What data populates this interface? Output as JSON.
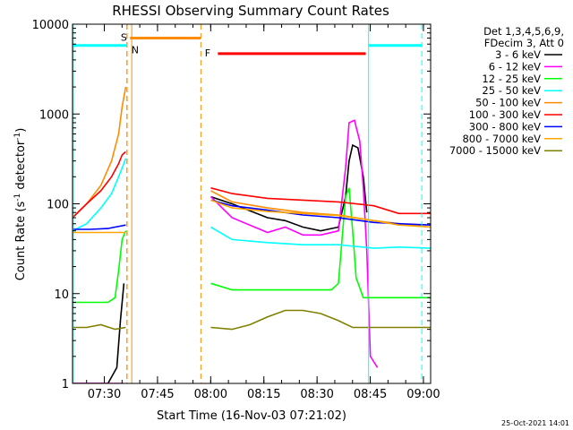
{
  "chart_data": {
    "type": "line",
    "title": "RHESSI Observing Summary Count Rates",
    "xlabel": "Start Time (16-Nov-03 07:21:02)",
    "ylabel_main": "Count Rate (s",
    "ylabel_sup1": "-1",
    "ylabel_mid": " detector",
    "ylabel_sup2": "-1",
    "ylabel_end": ")",
    "yscale": "log",
    "ylim": [
      1,
      10000
    ],
    "xlim_minutes": [
      0,
      101
    ],
    "x_ticks": [
      {
        "label": "07:30",
        "t": 8.97
      },
      {
        "label": "07:45",
        "t": 23.97
      },
      {
        "label": "08:00",
        "t": 38.97
      },
      {
        "label": "08:15",
        "t": 53.97
      },
      {
        "label": "08:30",
        "t": 68.97
      },
      {
        "label": "08:45",
        "t": 83.97
      },
      {
        "label": "09:00",
        "t": 98.97
      }
    ],
    "y_ticks": [
      {
        "label": "1",
        "v": 1
      },
      {
        "label": "10",
        "v": 10
      },
      {
        "label": "100",
        "v": 100
      },
      {
        "label": "1000",
        "v": 1000
      },
      {
        "label": "10000",
        "v": 10000
      }
    ],
    "legend_header": [
      "Det 1,3,4,5,6,9,",
      "FDecim 3, Att 0"
    ],
    "legend_placement": "top-right outside",
    "series": [
      {
        "name": "3 - 6 keV",
        "color": "#000000",
        "points": [
          [
            0,
            1.0
          ],
          [
            10,
            1.0
          ],
          [
            12.5,
            1.5
          ],
          [
            13.5,
            5
          ],
          [
            14.5,
            13
          ],
          [
            38.5,
            null
          ],
          [
            39,
            120
          ],
          [
            45,
            100
          ],
          [
            55,
            70
          ],
          [
            60,
            65
          ],
          [
            65,
            55
          ],
          [
            70,
            50
          ],
          [
            75,
            55
          ],
          [
            77,
            120
          ],
          [
            78,
            300
          ],
          [
            79,
            450
          ],
          [
            80.5,
            420
          ],
          [
            82,
            200
          ],
          [
            83,
            80
          ]
        ]
      },
      {
        "name": "6 - 12 keV",
        "color": "#ff00ff",
        "points": [
          [
            0,
            1.0
          ],
          [
            14.5,
            1.0
          ],
          [
            38.5,
            null
          ],
          [
            39,
            120
          ],
          [
            45,
            70
          ],
          [
            55,
            48
          ],
          [
            60,
            55
          ],
          [
            65,
            45
          ],
          [
            70,
            45
          ],
          [
            75,
            50
          ],
          [
            77,
            250
          ],
          [
            78,
            800
          ],
          [
            79.5,
            850
          ],
          [
            81,
            500
          ],
          [
            82,
            150
          ],
          [
            83,
            30
          ],
          [
            84,
            2
          ],
          [
            86,
            1.5
          ]
        ]
      },
      {
        "name": "12 - 25 keV",
        "color": "#00ff00",
        "points": [
          [
            0,
            8
          ],
          [
            5,
            8
          ],
          [
            10,
            8
          ],
          [
            12,
            9
          ],
          [
            13,
            18
          ],
          [
            14,
            40
          ],
          [
            15,
            50
          ],
          [
            38.5,
            null
          ],
          [
            39,
            13
          ],
          [
            45,
            11
          ],
          [
            55,
            11
          ],
          [
            65,
            11
          ],
          [
            73,
            11
          ],
          [
            75,
            13
          ],
          [
            76,
            40
          ],
          [
            77,
            120
          ],
          [
            78,
            150
          ],
          [
            79,
            50
          ],
          [
            80,
            15
          ],
          [
            82,
            9
          ],
          [
            90,
            9
          ],
          [
            101,
            9
          ]
        ]
      },
      {
        "name": "25 - 50 keV",
        "color": "#00ffff",
        "points": [
          [
            0,
            50
          ],
          [
            4,
            60
          ],
          [
            8,
            90
          ],
          [
            11,
            130
          ],
          [
            13,
            200
          ],
          [
            14,
            250
          ],
          [
            15,
            320
          ],
          [
            38.5,
            null
          ],
          [
            39,
            55
          ],
          [
            45,
            40
          ],
          [
            55,
            37
          ],
          [
            65,
            35
          ],
          [
            75,
            35
          ],
          [
            85,
            32
          ],
          [
            92,
            33
          ],
          [
            101,
            32
          ]
        ]
      },
      {
        "name": "50 - 100 keV",
        "color": "#ff8c00",
        "points": [
          [
            0,
            70
          ],
          [
            4,
            100
          ],
          [
            8,
            160
          ],
          [
            11,
            300
          ],
          [
            13,
            600
          ],
          [
            14,
            1200
          ],
          [
            15,
            2000
          ],
          [
            38.5,
            null
          ],
          [
            39,
            140
          ],
          [
            45,
            105
          ],
          [
            55,
            90
          ],
          [
            65,
            80
          ],
          [
            75,
            75
          ],
          [
            85,
            65
          ],
          [
            92,
            60
          ],
          [
            101,
            55
          ]
        ]
      },
      {
        "name": "100 - 300 keV",
        "color": "#ff0000",
        "points": [
          [
            0,
            70
          ],
          [
            4,
            100
          ],
          [
            8,
            140
          ],
          [
            11,
            200
          ],
          [
            13,
            280
          ],
          [
            14,
            350
          ],
          [
            15,
            380
          ],
          [
            38.5,
            null
          ],
          [
            39,
            150
          ],
          [
            45,
            130
          ],
          [
            55,
            115
          ],
          [
            65,
            110
          ],
          [
            75,
            105
          ],
          [
            85,
            95
          ],
          [
            92,
            78
          ],
          [
            101,
            78
          ]
        ]
      },
      {
        "name": "300 - 800 keV",
        "color": "#0000ff",
        "points": [
          [
            0,
            52
          ],
          [
            5,
            52
          ],
          [
            10,
            53
          ],
          [
            12,
            55
          ],
          [
            14,
            57
          ],
          [
            15,
            58
          ],
          [
            38.5,
            null
          ],
          [
            39,
            110
          ],
          [
            45,
            95
          ],
          [
            55,
            85
          ],
          [
            65,
            75
          ],
          [
            75,
            70
          ],
          [
            85,
            62
          ],
          [
            92,
            60
          ],
          [
            101,
            58
          ]
        ]
      },
      {
        "name": "800 - 7000 keV",
        "color": "#ffa500",
        "points": [
          [
            0,
            48
          ],
          [
            5,
            48
          ],
          [
            10,
            48
          ],
          [
            15,
            48
          ],
          [
            38.5,
            null
          ],
          [
            39,
            110
          ],
          [
            45,
            90
          ],
          [
            55,
            82
          ],
          [
            65,
            78
          ],
          [
            75,
            74
          ],
          [
            85,
            65
          ],
          [
            92,
            58
          ],
          [
            101,
            55
          ]
        ]
      },
      {
        "name": "7000 - 15000 keV",
        "color": "#808000",
        "points": [
          [
            0,
            4.2
          ],
          [
            4,
            4.2
          ],
          [
            8,
            4.5
          ],
          [
            12,
            4.0
          ],
          [
            15,
            4.2
          ],
          [
            38.5,
            null
          ],
          [
            39,
            4.2
          ],
          [
            45,
            4.0
          ],
          [
            50,
            4.5
          ],
          [
            55,
            5.5
          ],
          [
            60,
            6.5
          ],
          [
            65,
            6.5
          ],
          [
            70,
            6.0
          ],
          [
            75,
            5.0
          ],
          [
            79,
            4.2
          ],
          [
            85,
            4.2
          ],
          [
            92,
            4.2
          ],
          [
            101,
            4.2
          ]
        ]
      }
    ],
    "flag_bars": [
      {
        "label": "S",
        "color": "#ff8c00",
        "t_start": 16.2,
        "t_end": 36.2,
        "level": 7000
      },
      {
        "label": "N",
        "color": "#00ffff",
        "t_start": 0,
        "t_end": 15.4,
        "level": 5800
      },
      {
        "label": "N",
        "color": "#00ffff",
        "t_start": 83.5,
        "t_end": 98.5,
        "level": 5800
      },
      {
        "label": "F",
        "color": "#ff0000",
        "t_start": 41.0,
        "t_end": 82.7,
        "level": 4700
      }
    ],
    "flag_text": [
      {
        "text": "S",
        "color": "#ff8c00",
        "t": 13.6,
        "level": 7200
      },
      {
        "text": "N",
        "color": "#00ffff",
        "t": 16.6,
        "level": 5200
      },
      {
        "text": "F",
        "color": "#ff0000",
        "t": 37.3,
        "level": 4800
      }
    ],
    "vlines": [
      {
        "t": 15.3,
        "color": "#00ffff",
        "style": "dashed"
      },
      {
        "t": 15.4,
        "color": "#ff8c00",
        "style": "dashed"
      },
      {
        "t": 16.7,
        "color": "#ff8c00",
        "style": "solid"
      },
      {
        "t": 36.2,
        "color": "#ff8c00",
        "style": "dashed"
      },
      {
        "t": 83.5,
        "color": "#00ffff",
        "style": "solid"
      },
      {
        "t": 98.5,
        "color": "#00ffff",
        "style": "dashed"
      },
      {
        "t": 0.2,
        "color": "#00ffff",
        "style": "solid"
      }
    ],
    "footer_date": "25-Oct-2021 14:01"
  }
}
